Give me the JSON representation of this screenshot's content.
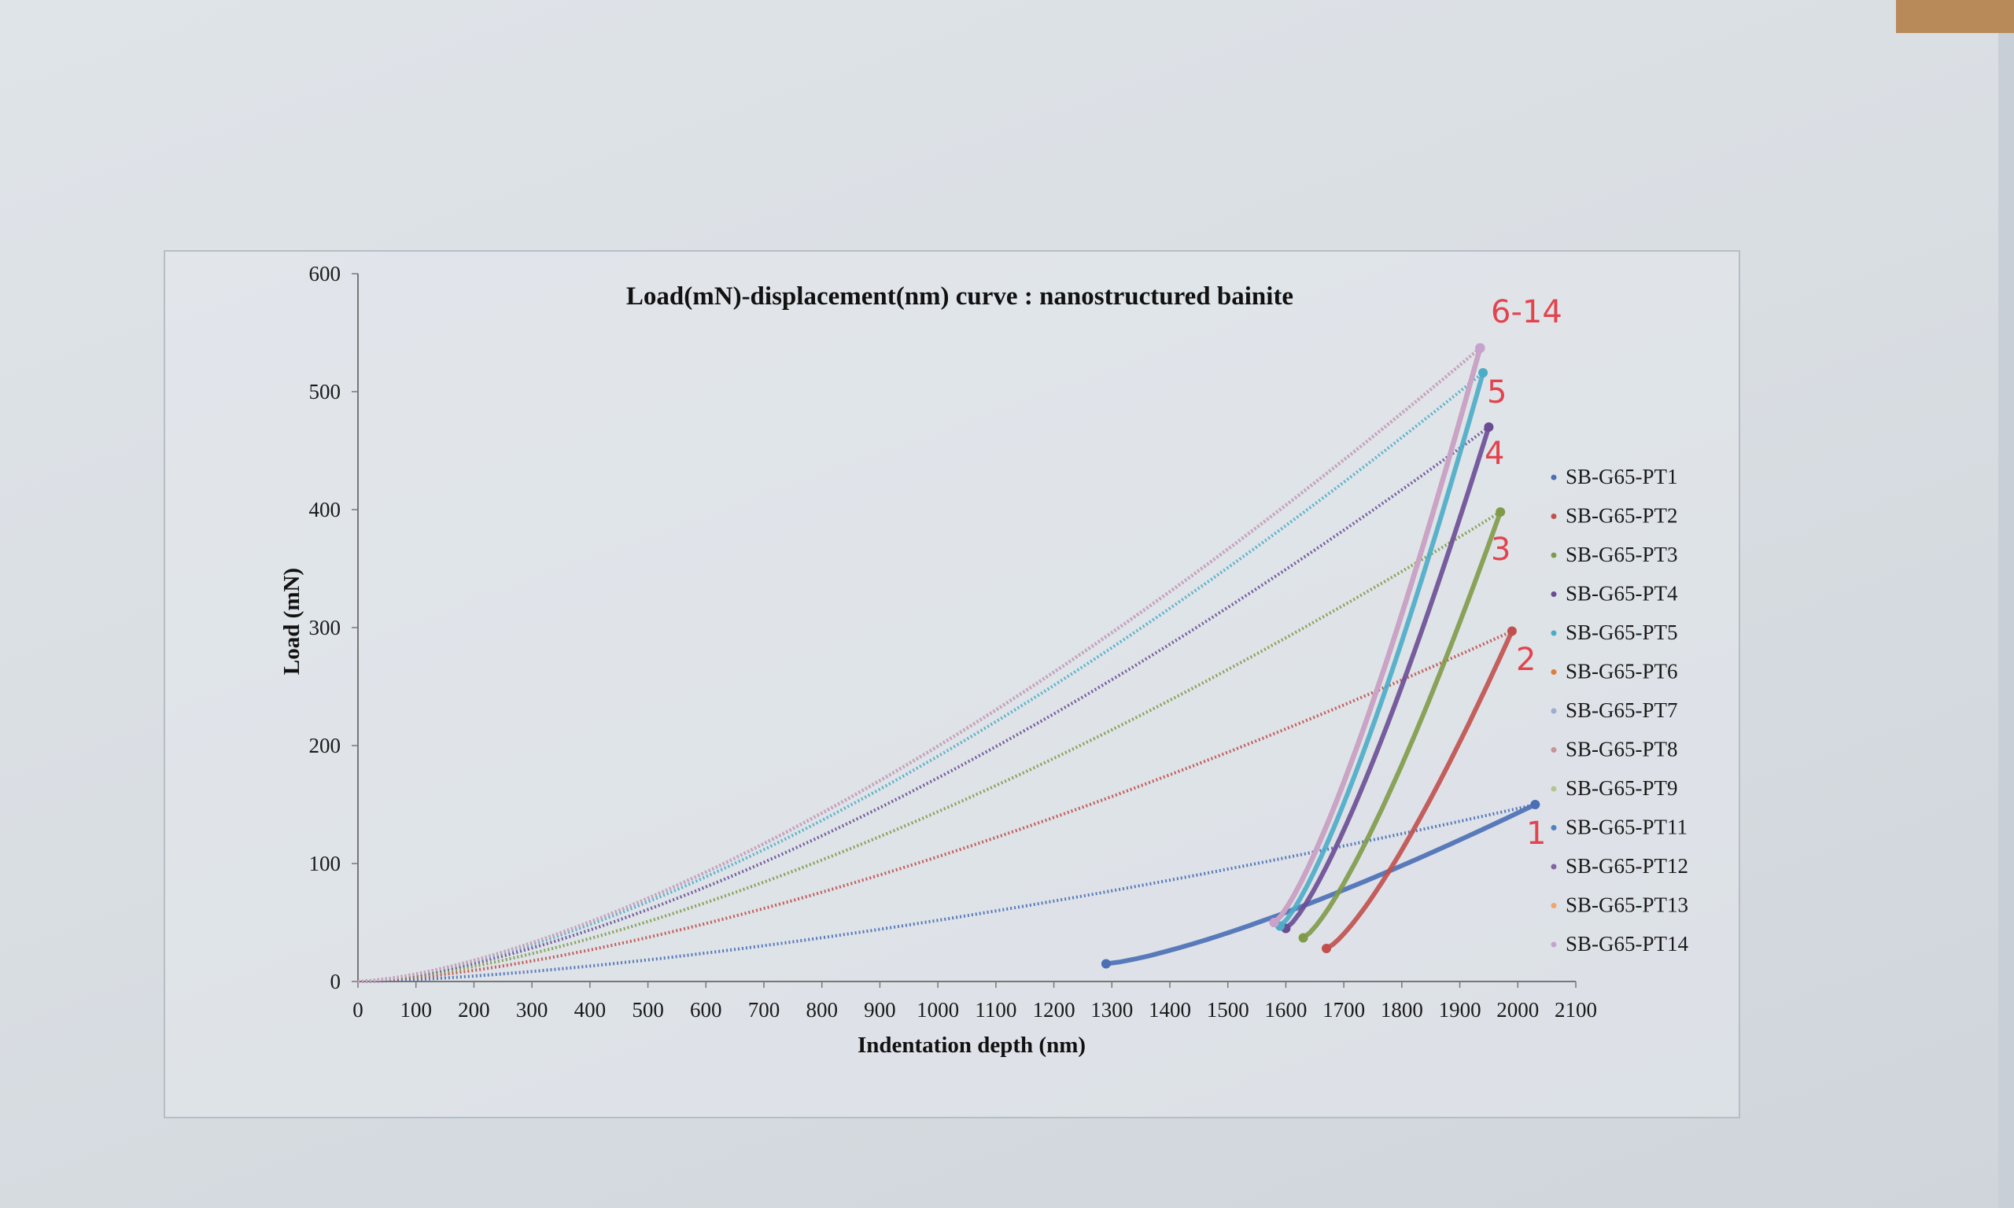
{
  "chart_data": {
    "type": "scatter",
    "title": "Load(mN)-displacement(nm) curve : nanostructured  bainite",
    "xlabel": "Indentation depth (nm)",
    "ylabel": "Load (mN)",
    "xlim": [
      0,
      2100
    ],
    "ylim": [
      0,
      600
    ],
    "x_ticks": [
      "0",
      "100",
      "200",
      "300",
      "400",
      "500",
      "600",
      "700",
      "800",
      "900",
      "1000",
      "1100",
      "1200",
      "1300",
      "1400",
      "1500",
      "1600",
      "1700",
      "1800",
      "1900",
      "2000",
      "2100"
    ],
    "y_ticks": [
      "0",
      "100",
      "200",
      "300",
      "400",
      "500",
      "600"
    ],
    "grid": false,
    "legend_position": "right",
    "series": [
      {
        "name": "SB-G65-PT1",
        "color": "#4a6fb5",
        "max_depth": 2030,
        "max_load": 150,
        "final_depth": 1290,
        "final_load": 15
      },
      {
        "name": "SB-G65-PT2",
        "color": "#c0504d",
        "max_depth": 1990,
        "max_load": 297,
        "final_depth": 1670,
        "final_load": 28
      },
      {
        "name": "SB-G65-PT3",
        "color": "#7f9a48",
        "max_depth": 1970,
        "max_load": 398,
        "final_depth": 1630,
        "final_load": 37
      },
      {
        "name": "SB-G65-PT4",
        "color": "#6a4c93",
        "max_depth": 1950,
        "max_load": 470,
        "final_depth": 1600,
        "final_load": 45
      },
      {
        "name": "SB-G65-PT5",
        "color": "#4bacc6",
        "max_depth": 1940,
        "max_load": 516,
        "final_depth": 1590,
        "final_load": 47
      },
      {
        "name": "SB-G65-PT6",
        "color": "#e07b39",
        "max_depth": 1935,
        "max_load": 537,
        "final_depth": 1580,
        "final_load": 50
      },
      {
        "name": "SB-G65-PT7",
        "color": "#9aaecd",
        "max_depth": 1935,
        "max_load": 537,
        "final_depth": 1580,
        "final_load": 50
      },
      {
        "name": "SB-G65-PT8",
        "color": "#c99492",
        "max_depth": 1935,
        "max_load": 537,
        "final_depth": 1580,
        "final_load": 50
      },
      {
        "name": "SB-G65-PT9",
        "color": "#b3c58e",
        "max_depth": 1935,
        "max_load": 537,
        "final_depth": 1580,
        "final_load": 50
      },
      {
        "name": "SB-G65-PT11",
        "color": "#4f81bd",
        "max_depth": 1935,
        "max_load": 537,
        "final_depth": 1580,
        "final_load": 50
      },
      {
        "name": "SB-G65-PT12",
        "color": "#8064a2",
        "max_depth": 1935,
        "max_load": 537,
        "final_depth": 1580,
        "final_load": 50
      },
      {
        "name": "SB-G65-PT13",
        "color": "#f2a46c",
        "max_depth": 1935,
        "max_load": 537,
        "final_depth": 1580,
        "final_load": 50
      },
      {
        "name": "SB-G65-PT14",
        "color": "#c6a3cf",
        "max_depth": 1935,
        "max_load": 537,
        "final_depth": 1580,
        "final_load": 50
      }
    ],
    "handwritten_notes": [
      "6-14",
      "5",
      "4",
      "3",
      "2",
      "1"
    ]
  }
}
